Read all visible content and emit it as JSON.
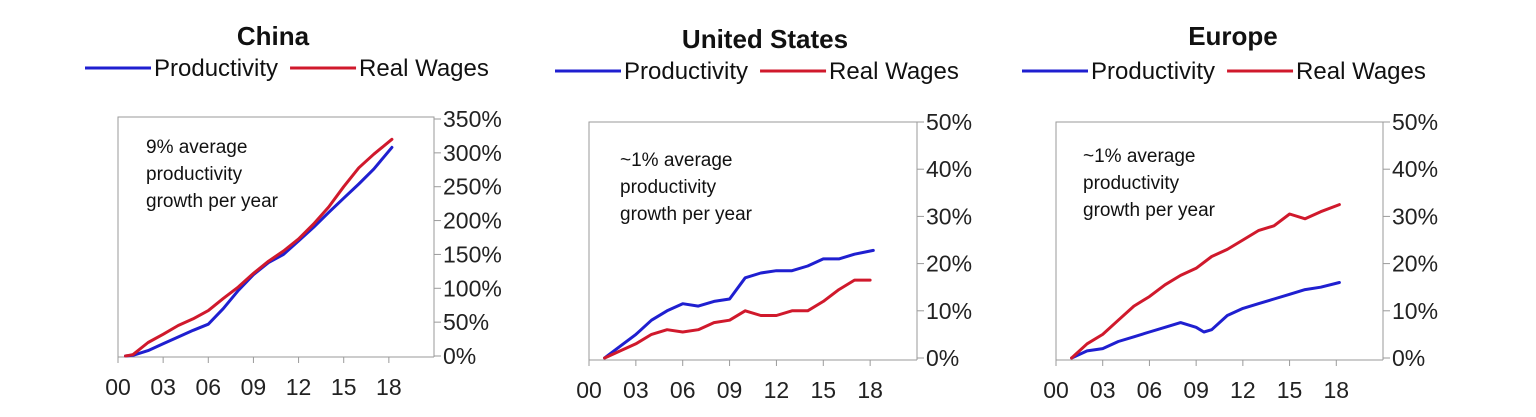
{
  "colors": {
    "productivity": "#1f1fd0",
    "real_wages": "#d0192c",
    "axis": "#9a9a9a"
  },
  "chart_data": [
    {
      "type": "line",
      "title": "China",
      "legend": [
        "Productivity",
        "Real Wages"
      ],
      "annotation": [
        "9% average",
        "productivity",
        "growth per year"
      ],
      "x_ticks": [
        "00",
        "03",
        "06",
        "09",
        "12",
        "15",
        "18"
      ],
      "y_ticks": [
        "0%",
        "50%",
        "100%",
        "150%",
        "200%",
        "250%",
        "300%",
        "350%"
      ],
      "xlim": [
        0,
        21
      ],
      "ylim": [
        0,
        350
      ],
      "series": [
        {
          "name": "Productivity",
          "x": [
            0.5,
            1,
            2,
            3,
            4,
            5,
            6,
            7,
            8,
            9,
            10,
            11,
            12,
            13,
            14,
            15,
            16,
            17,
            18.2
          ],
          "y": [
            0,
            1,
            8,
            18,
            28,
            38,
            47,
            70,
            97,
            120,
            138,
            150,
            170,
            190,
            212,
            233,
            254,
            276,
            308
          ]
        },
        {
          "name": "Real Wages",
          "x": [
            0.5,
            1,
            2,
            3,
            4,
            5,
            6,
            7,
            8,
            9,
            10,
            11,
            12,
            13,
            14,
            15,
            16,
            17,
            18.2
          ],
          "y": [
            0,
            2,
            20,
            32,
            45,
            55,
            67,
            85,
            102,
            122,
            140,
            155,
            173,
            195,
            220,
            250,
            278,
            298,
            320
          ]
        }
      ]
    },
    {
      "type": "line",
      "title": "United States",
      "legend": [
        "Productivity",
        "Real Wages"
      ],
      "annotation": [
        "~1% average",
        "productivity",
        "growth per year"
      ],
      "x_ticks": [
        "00",
        "03",
        "06",
        "09",
        "12",
        "15",
        "18"
      ],
      "y_ticks": [
        "0%",
        "10%",
        "20%",
        "30%",
        "40%",
        "50%"
      ],
      "xlim": [
        0,
        21
      ],
      "ylim": [
        0,
        50
      ],
      "series": [
        {
          "name": "Productivity",
          "x": [
            1,
            2,
            3,
            4,
            5,
            6,
            7,
            8,
            9,
            10,
            11,
            12,
            13,
            14,
            15,
            16,
            17,
            18.2
          ],
          "y": [
            0,
            2.5,
            5,
            8,
            10,
            11.5,
            11,
            12,
            12.5,
            17,
            18,
            18.5,
            18.5,
            19.5,
            21,
            21,
            22,
            22.8
          ]
        },
        {
          "name": "Real Wages",
          "x": [
            1,
            2,
            3,
            4,
            5,
            6,
            7,
            8,
            9,
            10,
            11,
            12,
            13,
            14,
            15,
            16,
            17,
            18
          ],
          "y": [
            0,
            1.5,
            3,
            5,
            6,
            5.5,
            6,
            7.5,
            8,
            10,
            9,
            9,
            10,
            10,
            12,
            14.5,
            16.5,
            16.5
          ]
        }
      ]
    },
    {
      "type": "line",
      "title": "Europe",
      "legend": [
        "Productivity",
        "Real Wages"
      ],
      "annotation": [
        "~1% average",
        "productivity",
        "growth per year"
      ],
      "x_ticks": [
        "00",
        "03",
        "06",
        "09",
        "12",
        "15",
        "18"
      ],
      "y_ticks": [
        "0%",
        "10%",
        "20%",
        "30%",
        "40%",
        "50%"
      ],
      "xlim": [
        0,
        21
      ],
      "ylim": [
        0,
        50
      ],
      "series": [
        {
          "name": "Productivity",
          "x": [
            1,
            2,
            3,
            4,
            5,
            6,
            7,
            8,
            9,
            9.5,
            10,
            11,
            12,
            13,
            14,
            15,
            16,
            17,
            18.2
          ],
          "y": [
            0,
            1.5,
            2,
            3.5,
            4.5,
            5.5,
            6.5,
            7.5,
            6.5,
            5.5,
            6,
            9,
            10.5,
            11.5,
            12.5,
            13.5,
            14.5,
            15,
            16
          ]
        },
        {
          "name": "Real Wages",
          "x": [
            1,
            2,
            3,
            4,
            5,
            6,
            7,
            8,
            9,
            10,
            11,
            12,
            13,
            14,
            15,
            16,
            17,
            18.2
          ],
          "y": [
            0,
            3,
            5,
            8,
            11,
            13,
            15.5,
            17.5,
            19,
            21.5,
            23,
            25,
            27,
            28,
            30.5,
            29.5,
            31,
            32.5
          ]
        }
      ]
    }
  ]
}
